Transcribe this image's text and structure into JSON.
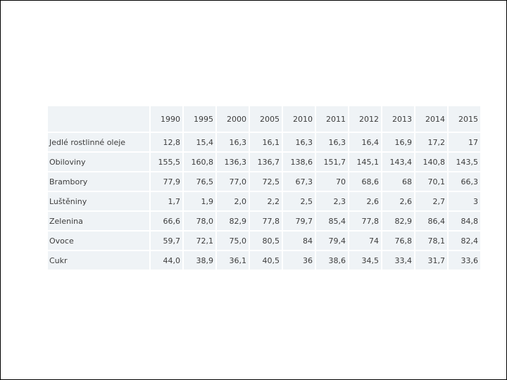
{
  "page": {
    "background_color": "#ffffff",
    "border_color": "#000000",
    "table_row_color": "#eff3f6",
    "grid_line_color": "#ffffff",
    "text_color": "#3c3c3c"
  },
  "table": {
    "corner_label": "",
    "columns": [
      "1990",
      "1995",
      "2000",
      "2005",
      "2010",
      "2011",
      "2012",
      "2013",
      "2014",
      "2015"
    ],
    "rows": [
      {
        "label": "Jedlé rostlinné oleje",
        "values": [
          "12,8",
          "15,4",
          "16,3",
          "16,1",
          "16,3",
          "16,3",
          "16,4",
          "16,9",
          "17,2",
          "17"
        ]
      },
      {
        "label": "Obiloviny",
        "values": [
          "155,5",
          "160,8",
          "136,3",
          "136,7",
          "138,6",
          "151,7",
          "145,1",
          "143,4",
          "140,8",
          "143,5"
        ]
      },
      {
        "label": "Brambory",
        "values": [
          "77,9",
          "76,5",
          "77,0",
          "72,5",
          "67,3",
          "70",
          "68,6",
          "68",
          "70,1",
          "66,3"
        ]
      },
      {
        "label": "Luštěniny",
        "values": [
          "1,7",
          "1,9",
          "2,0",
          "2,2",
          "2,5",
          "2,3",
          "2,6",
          "2,6",
          "2,7",
          "3"
        ]
      },
      {
        "label": "Zelenina",
        "values": [
          "66,6",
          "78,0",
          "82,9",
          "77,8",
          "79,7",
          "85,4",
          "77,8",
          "82,9",
          "86,4",
          "84,8"
        ]
      },
      {
        "label": "Ovoce",
        "values": [
          "59,7",
          "72,1",
          "75,0",
          "80,5",
          "84",
          "79,4",
          "74",
          "76,8",
          "78,1",
          "82,4"
        ]
      },
      {
        "label": "Cukr",
        "values": [
          "44,0",
          "38,9",
          "36,1",
          "40,5",
          "36",
          "38,6",
          "34,5",
          "33,4",
          "31,7",
          "33,6"
        ]
      }
    ]
  },
  "chart_data": {
    "type": "table",
    "title": "",
    "categories": [
      1990,
      1995,
      2000,
      2005,
      2010,
      2011,
      2012,
      2013,
      2014,
      2015
    ],
    "series": [
      {
        "name": "Jedlé rostlinné oleje",
        "values": [
          12.8,
          15.4,
          16.3,
          16.1,
          16.3,
          16.3,
          16.4,
          16.9,
          17.2,
          17
        ]
      },
      {
        "name": "Obiloviny",
        "values": [
          155.5,
          160.8,
          136.3,
          136.7,
          138.6,
          151.7,
          145.1,
          143.4,
          140.8,
          143.5
        ]
      },
      {
        "name": "Brambory",
        "values": [
          77.9,
          76.5,
          77.0,
          72.5,
          67.3,
          70,
          68.6,
          68,
          70.1,
          66.3
        ]
      },
      {
        "name": "Luštěniny",
        "values": [
          1.7,
          1.9,
          2.0,
          2.2,
          2.5,
          2.3,
          2.6,
          2.6,
          2.7,
          3
        ]
      },
      {
        "name": "Zelenina",
        "values": [
          66.6,
          78.0,
          82.9,
          77.8,
          79.7,
          85.4,
          77.8,
          82.9,
          86.4,
          84.8
        ]
      },
      {
        "name": "Ovoce",
        "values": [
          59.7,
          72.1,
          75.0,
          80.5,
          84,
          79.4,
          74,
          76.8,
          78.1,
          82.4
        ]
      },
      {
        "name": "Cukr",
        "values": [
          44.0,
          38.9,
          36.1,
          40.5,
          36,
          38.6,
          34.5,
          33.4,
          31.7,
          33.6
        ]
      }
    ],
    "layout": {
      "decimal_separator": ",",
      "grid": true,
      "legend_position": "none"
    }
  }
}
